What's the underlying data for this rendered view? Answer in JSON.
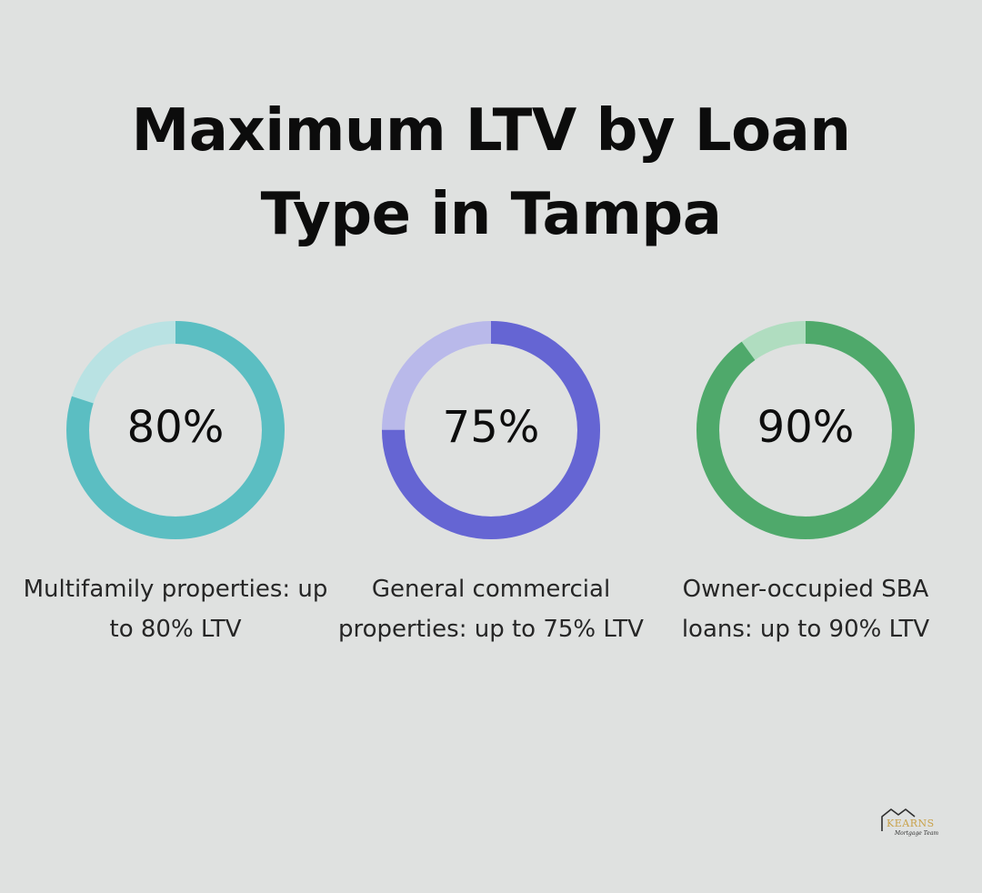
{
  "title_lines": [
    "Maximum LTV by Loan",
    "Type in Tampa"
  ],
  "chart_data": {
    "type": "donut",
    "title": "Maximum LTV by Loan Type in Tampa",
    "unit": "%",
    "max": 100,
    "items": [
      {
        "value": 80,
        "label": "80%",
        "description": "Multifamily properties: up to 80% LTV",
        "color": "#5bbec2",
        "track_color": "#b9e2e3"
      },
      {
        "value": 75,
        "label": "75%",
        "description": "General commercial properties: up to 75% LTV",
        "color": "#6565d3",
        "track_color": "#b9b9ea"
      },
      {
        "value": 90,
        "label": "90%",
        "description": "Owner-occupied SBA loans: up to 90% LTV",
        "color": "#4fa96b",
        "track_color": "#b0ddc0"
      }
    ]
  },
  "logo": {
    "brand": "KEARNS",
    "tagline": "Mortgage Team",
    "brand_color": "#c9a24a",
    "icon": "house-icon"
  }
}
